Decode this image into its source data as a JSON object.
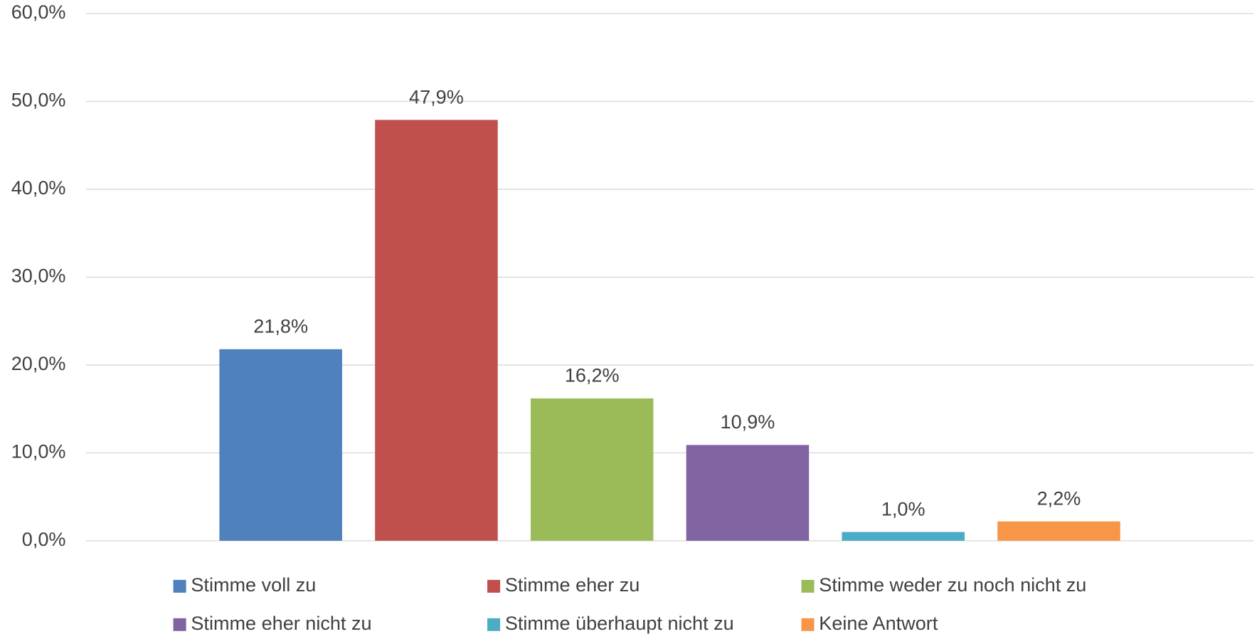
{
  "chart_data": {
    "type": "bar",
    "series": [
      {
        "name": "Stimme voll zu",
        "color": "#4f81bd",
        "values": [
          21.8
        ],
        "value_labels": [
          "21,8%"
        ]
      },
      {
        "name": "Stimme eher zu",
        "color": "#c0504d",
        "values": [
          47.9
        ],
        "value_labels": [
          "47,9%"
        ]
      },
      {
        "name": "Stimme weder zu noch nicht zu",
        "color": "#9bbb59",
        "values": [
          16.2
        ],
        "value_labels": [
          "16,2%"
        ]
      },
      {
        "name": "Stimme eher nicht zu",
        "color": "#8064a2",
        "values": [
          10.9
        ],
        "value_labels": [
          "10,9%"
        ]
      },
      {
        "name": "Stimme überhaupt nicht zu",
        "color": "#4bacc6",
        "values": [
          1.0
        ],
        "value_labels": [
          "1,0%"
        ]
      },
      {
        "name": "Keine Antwort",
        "color": "#f79646",
        "values": [
          2.2
        ],
        "value_labels": [
          "2,2%"
        ]
      }
    ],
    "ylim": [
      0,
      60
    ],
    "yticks": [
      {
        "value": 0,
        "label": "0,0%"
      },
      {
        "value": 10,
        "label": "10,0%"
      },
      {
        "value": 20,
        "label": "20,0%"
      },
      {
        "value": 30,
        "label": "30,0%"
      },
      {
        "value": 40,
        "label": "40,0%"
      },
      {
        "value": 50,
        "label": "50,0%"
      },
      {
        "value": 60,
        "label": "60,0%"
      }
    ],
    "grid": true,
    "legend": "bottom"
  }
}
